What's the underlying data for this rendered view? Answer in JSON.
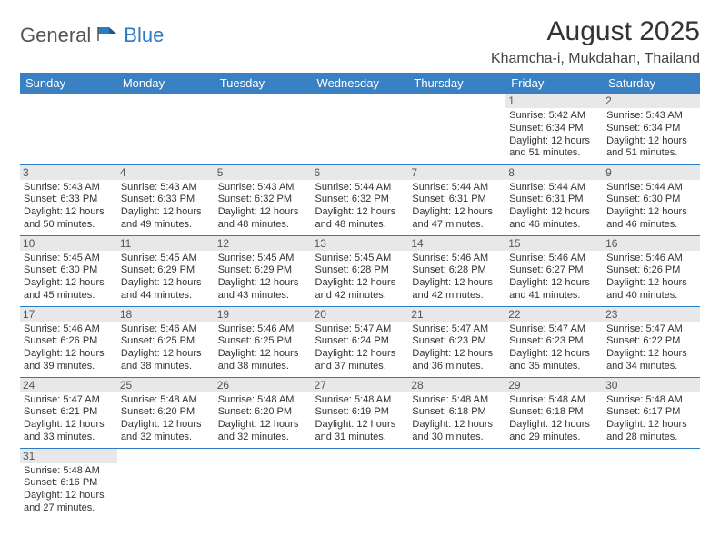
{
  "header": {
    "logo_part1": "General",
    "logo_part2": "Blue",
    "month_title": "August 2025",
    "location": "Khamcha-i, Mukdahan, Thailand"
  },
  "colors": {
    "header_bg": "#3a81c4",
    "row_divider": "#2a7cc4",
    "daynum_bg": "#e8e8e8",
    "logo_blue": "#2a7cc4",
    "logo_gray": "#555555"
  },
  "weekdays": [
    "Sunday",
    "Monday",
    "Tuesday",
    "Wednesday",
    "Thursday",
    "Friday",
    "Saturday"
  ],
  "days": [
    {
      "n": 1,
      "sr": "5:42 AM",
      "ss": "6:34 PM",
      "dl": "12 hours and 51 minutes."
    },
    {
      "n": 2,
      "sr": "5:43 AM",
      "ss": "6:34 PM",
      "dl": "12 hours and 51 minutes."
    },
    {
      "n": 3,
      "sr": "5:43 AM",
      "ss": "6:33 PM",
      "dl": "12 hours and 50 minutes."
    },
    {
      "n": 4,
      "sr": "5:43 AM",
      "ss": "6:33 PM",
      "dl": "12 hours and 49 minutes."
    },
    {
      "n": 5,
      "sr": "5:43 AM",
      "ss": "6:32 PM",
      "dl": "12 hours and 48 minutes."
    },
    {
      "n": 6,
      "sr": "5:44 AM",
      "ss": "6:32 PM",
      "dl": "12 hours and 48 minutes."
    },
    {
      "n": 7,
      "sr": "5:44 AM",
      "ss": "6:31 PM",
      "dl": "12 hours and 47 minutes."
    },
    {
      "n": 8,
      "sr": "5:44 AM",
      "ss": "6:31 PM",
      "dl": "12 hours and 46 minutes."
    },
    {
      "n": 9,
      "sr": "5:44 AM",
      "ss": "6:30 PM",
      "dl": "12 hours and 46 minutes."
    },
    {
      "n": 10,
      "sr": "5:45 AM",
      "ss": "6:30 PM",
      "dl": "12 hours and 45 minutes."
    },
    {
      "n": 11,
      "sr": "5:45 AM",
      "ss": "6:29 PM",
      "dl": "12 hours and 44 minutes."
    },
    {
      "n": 12,
      "sr": "5:45 AM",
      "ss": "6:29 PM",
      "dl": "12 hours and 43 minutes."
    },
    {
      "n": 13,
      "sr": "5:45 AM",
      "ss": "6:28 PM",
      "dl": "12 hours and 42 minutes."
    },
    {
      "n": 14,
      "sr": "5:46 AM",
      "ss": "6:28 PM",
      "dl": "12 hours and 42 minutes."
    },
    {
      "n": 15,
      "sr": "5:46 AM",
      "ss": "6:27 PM",
      "dl": "12 hours and 41 minutes."
    },
    {
      "n": 16,
      "sr": "5:46 AM",
      "ss": "6:26 PM",
      "dl": "12 hours and 40 minutes."
    },
    {
      "n": 17,
      "sr": "5:46 AM",
      "ss": "6:26 PM",
      "dl": "12 hours and 39 minutes."
    },
    {
      "n": 18,
      "sr": "5:46 AM",
      "ss": "6:25 PM",
      "dl": "12 hours and 38 minutes."
    },
    {
      "n": 19,
      "sr": "5:46 AM",
      "ss": "6:25 PM",
      "dl": "12 hours and 38 minutes."
    },
    {
      "n": 20,
      "sr": "5:47 AM",
      "ss": "6:24 PM",
      "dl": "12 hours and 37 minutes."
    },
    {
      "n": 21,
      "sr": "5:47 AM",
      "ss": "6:23 PM",
      "dl": "12 hours and 36 minutes."
    },
    {
      "n": 22,
      "sr": "5:47 AM",
      "ss": "6:23 PM",
      "dl": "12 hours and 35 minutes."
    },
    {
      "n": 23,
      "sr": "5:47 AM",
      "ss": "6:22 PM",
      "dl": "12 hours and 34 minutes."
    },
    {
      "n": 24,
      "sr": "5:47 AM",
      "ss": "6:21 PM",
      "dl": "12 hours and 33 minutes."
    },
    {
      "n": 25,
      "sr": "5:48 AM",
      "ss": "6:20 PM",
      "dl": "12 hours and 32 minutes."
    },
    {
      "n": 26,
      "sr": "5:48 AM",
      "ss": "6:20 PM",
      "dl": "12 hours and 32 minutes."
    },
    {
      "n": 27,
      "sr": "5:48 AM",
      "ss": "6:19 PM",
      "dl": "12 hours and 31 minutes."
    },
    {
      "n": 28,
      "sr": "5:48 AM",
      "ss": "6:18 PM",
      "dl": "12 hours and 30 minutes."
    },
    {
      "n": 29,
      "sr": "5:48 AM",
      "ss": "6:18 PM",
      "dl": "12 hours and 29 minutes."
    },
    {
      "n": 30,
      "sr": "5:48 AM",
      "ss": "6:17 PM",
      "dl": "12 hours and 28 minutes."
    },
    {
      "n": 31,
      "sr": "5:48 AM",
      "ss": "6:16 PM",
      "dl": "12 hours and 27 minutes."
    }
  ],
  "labels": {
    "sunrise": "Sunrise:",
    "sunset": "Sunset:",
    "daylight": "Daylight:"
  },
  "layout": {
    "first_weekday_index": 5,
    "total_days": 31
  }
}
